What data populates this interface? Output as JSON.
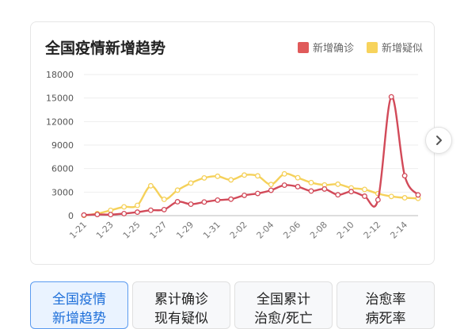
{
  "card": {
    "title": "全国疫情新增趋势",
    "legend": [
      {
        "label": "新增确诊",
        "color": "#e05a5a"
      },
      {
        "label": "新增疑似",
        "color": "#f7d35c"
      }
    ]
  },
  "chart_data": {
    "type": "line",
    "ylim": [
      0,
      18000
    ],
    "y_ticks": [
      "0",
      "3000",
      "6000",
      "9000",
      "12000",
      "15000",
      "18000"
    ],
    "x_tick_labels": [
      "1-21",
      "1-23",
      "1-25",
      "1-27",
      "1-29",
      "1-31",
      "2-02",
      "2-04",
      "2-06",
      "2-08",
      "2-10",
      "2-12",
      "2-14"
    ],
    "x_count": 26,
    "series": [
      {
        "name": "新增确诊",
        "color": "#d24a59",
        "values": [
          77,
          149,
          131,
          259,
          444,
          688,
          769,
          1771,
          1459,
          1737,
          1981,
          2099,
          2590,
          2829,
          3235,
          3887,
          3694,
          3143,
          3399,
          2656,
          3062,
          2478,
          2015,
          15152,
          5090,
          2641
        ]
      },
      {
        "name": "新增疑似",
        "color": "#f5d15a",
        "values": [
          27,
          257,
          680,
          1118,
          1309,
          3806,
          2077,
          3248,
          4148,
          4812,
          5019,
          4562,
          5173,
          5072,
          3971,
          5328,
          4833,
          4214,
          3916,
          4008,
          3536,
          3342,
          2807,
          2450,
          2277,
          2200
        ]
      }
    ]
  },
  "nav": {
    "next_icon": "chevron-right-icon"
  },
  "tabs": [
    {
      "line1": "全国疫情",
      "line2": "新增趋势",
      "active": true
    },
    {
      "line1": "累计确诊",
      "line2": "现有疑似",
      "active": false
    },
    {
      "line1": "全国累计",
      "line2": "治愈/死亡",
      "active": false
    },
    {
      "line1": "治愈率",
      "line2": "病死率",
      "active": false
    }
  ]
}
